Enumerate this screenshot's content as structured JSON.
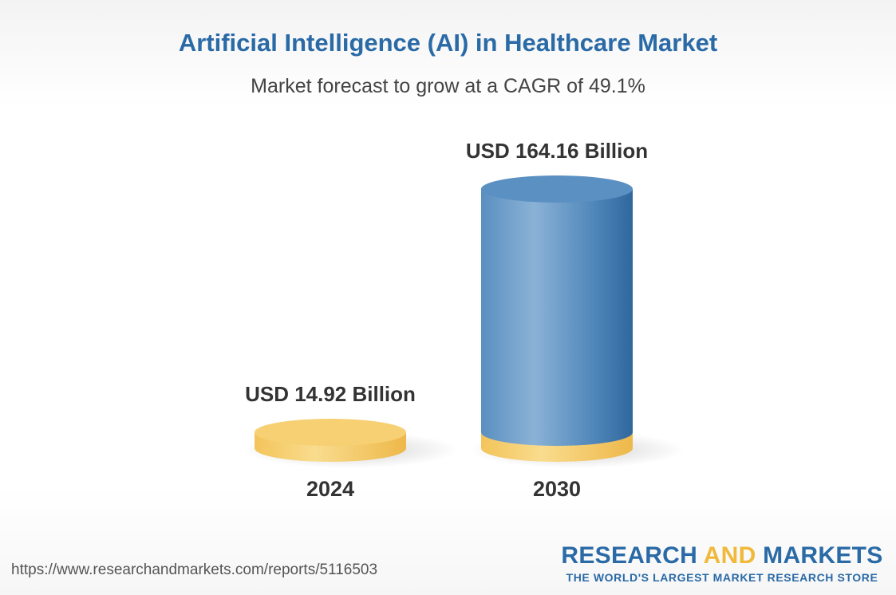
{
  "chart_data": {
    "type": "bar",
    "title": "Artificial Intelligence (AI) in Healthcare Market",
    "subtitle": "Market forecast to grow at a CAGR of 49.1%",
    "categories": [
      "2024",
      "2030"
    ],
    "values": [
      14.92,
      164.16
    ],
    "data_labels": [
      "USD 14.92 Billion",
      "USD 164.16 Billion"
    ],
    "unit": "USD Billion",
    "colors": {
      "base": "#f2c55c",
      "bar": "#4d86b8",
      "title": "#2a6aa6"
    },
    "grid": false,
    "legend": "none"
  },
  "footer": {
    "url": "https://www.researchandmarkets.com/reports/5116503",
    "brand_part1": "RESEARCH ",
    "brand_part2": "AND",
    "brand_part3": " MARKETS",
    "tagline": "THE WORLD'S LARGEST MARKET RESEARCH STORE"
  }
}
